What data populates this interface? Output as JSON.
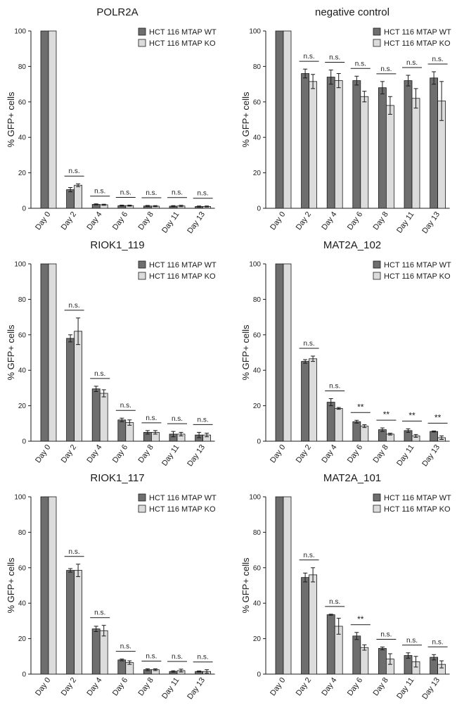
{
  "figure": {
    "ylabel": "% GFP+ cells",
    "yticks": [
      0,
      20,
      40,
      60,
      80,
      100
    ],
    "legend": {
      "wt": "HCT 116 MTAP WT",
      "ko": "HCT 116 MTAP KO"
    },
    "colors": {
      "wt": "#6e6e6e",
      "ko": "#dcdcdc",
      "stroke": "#1a1a1a"
    }
  },
  "chart_data": [
    {
      "type": "bar",
      "title": "POLR2A",
      "xlabel": "",
      "ylabel": "% GFP+ cells",
      "ylim": [
        0,
        100
      ],
      "legend_position": "top-right",
      "categories": [
        "Day 0",
        "Day 2",
        "Day 4",
        "Day 6",
        "Day 8",
        "Day 11",
        "Day 13"
      ],
      "series": [
        {
          "name": "HCT 116 MTAP WT",
          "values": [
            100,
            10.5,
            2.2,
            1.5,
            1.3,
            1.2,
            1.0
          ],
          "errors": [
            0,
            1.2,
            0.3,
            0.3,
            0.3,
            0.3,
            0.3
          ]
        },
        {
          "name": "HCT 116 MTAP KO",
          "values": [
            100,
            13.0,
            2.0,
            1.5,
            1.2,
            1.3,
            1.0
          ],
          "errors": [
            0,
            0.8,
            0.3,
            0.3,
            0.3,
            0.4,
            0.3
          ]
        }
      ],
      "significance": [
        "",
        "n.s.",
        "n.s.",
        "n.s.",
        "n.s.",
        "n.s.",
        "n.s."
      ]
    },
    {
      "type": "bar",
      "title": "negative control",
      "xlabel": "",
      "ylabel": "% GFP+ cells",
      "ylim": [
        0,
        100
      ],
      "legend_position": "top-right",
      "categories": [
        "Day 0",
        "Day 2",
        "Day 4",
        "Day 6",
        "Day 8",
        "Day 11",
        "Day 13"
      ],
      "series": [
        {
          "name": "HCT 116 MTAP WT",
          "values": [
            100,
            76,
            74,
            72,
            68,
            72,
            73.5
          ],
          "errors": [
            0,
            2.5,
            4.0,
            2.5,
            3.5,
            3.0,
            3.5
          ]
        },
        {
          "name": "HCT 116 MTAP KO",
          "values": [
            100,
            71.5,
            72,
            63,
            58,
            62,
            60.5
          ],
          "errors": [
            0,
            4.0,
            4.0,
            3.0,
            5.0,
            5.5,
            11
          ]
        }
      ],
      "significance": [
        "",
        "n.s.",
        "n.s.",
        "n.s.",
        "n.s.",
        "n.s.",
        "n.s."
      ]
    },
    {
      "type": "bar",
      "title": "RIOK1_119",
      "xlabel": "",
      "ylabel": "% GFP+ cells",
      "ylim": [
        0,
        100
      ],
      "legend_position": "top-right",
      "categories": [
        "Day 0",
        "Day 2",
        "Day 4",
        "Day 6",
        "Day 8",
        "Day 11",
        "Day 13"
      ],
      "series": [
        {
          "name": "HCT 116 MTAP WT",
          "values": [
            100,
            58,
            29.5,
            12,
            5,
            4,
            3.5
          ],
          "errors": [
            0,
            2.0,
            1.5,
            1.0,
            1.0,
            1.5,
            1.5
          ]
        },
        {
          "name": "HCT 116 MTAP KO",
          "values": [
            100,
            62,
            27,
            10.5,
            5,
            4,
            3.5
          ],
          "errors": [
            0,
            7.5,
            2.0,
            1.5,
            1.0,
            1.0,
            1.0
          ]
        }
      ],
      "significance": [
        "",
        "n.s.",
        "n.s.",
        "n.s.",
        "n.s.",
        "n.s.",
        "n.s."
      ]
    },
    {
      "type": "bar",
      "title": "MAT2A_102",
      "xlabel": "",
      "ylabel": "% GFP+ cells",
      "ylim": [
        0,
        100
      ],
      "legend_position": "top-right",
      "categories": [
        "Day 0",
        "Day 2",
        "Day 4",
        "Day 6",
        "Day 8",
        "Day 11",
        "Day 13"
      ],
      "series": [
        {
          "name": "HCT 116 MTAP WT",
          "values": [
            100,
            45,
            22,
            11,
            6.5,
            6,
            5.5
          ],
          "errors": [
            0,
            1.0,
            2.0,
            0.8,
            1.0,
            1.0,
            0.3
          ]
        },
        {
          "name": "HCT 116 MTAP KO",
          "values": [
            100,
            46.5,
            18.5,
            8.5,
            4,
            3,
            2
          ],
          "errors": [
            0,
            1.5,
            0.5,
            0.8,
            0.5,
            0.8,
            1.0
          ]
        }
      ],
      "significance": [
        "",
        "n.s.",
        "n.s.",
        "**",
        "**",
        "**",
        "**"
      ]
    },
    {
      "type": "bar",
      "title": "RIOK1_117",
      "xlabel": "",
      "ylabel": "% GFP+ cells",
      "ylim": [
        0,
        100
      ],
      "legend_position": "top-right",
      "categories": [
        "Day 0",
        "Day 2",
        "Day 4",
        "Day 6",
        "Day 8",
        "Day 11",
        "Day 13"
      ],
      "series": [
        {
          "name": "HCT 116 MTAP WT",
          "values": [
            100,
            58.5,
            25.5,
            8,
            2.5,
            1.5,
            1.5
          ],
          "errors": [
            0,
            1.0,
            1.5,
            0.5,
            0.5,
            0.4,
            0.3
          ]
        },
        {
          "name": "HCT 116 MTAP KO",
          "values": [
            100,
            58.5,
            24.5,
            6.5,
            2.5,
            2,
            1.5
          ],
          "errors": [
            0,
            3.5,
            3.0,
            1.0,
            0.5,
            0.8,
            1.0
          ]
        }
      ],
      "significance": [
        "",
        "n.s.",
        "n.s.",
        "n.s.",
        "n.s.",
        "n.s.",
        "n.s."
      ]
    },
    {
      "type": "bar",
      "title": "MAT2A_101",
      "xlabel": "",
      "ylabel": "% GFP+ cells",
      "ylim": [
        0,
        100
      ],
      "legend_position": "top-right",
      "categories": [
        "Day 0",
        "Day 2",
        "Day 4",
        "Day 6",
        "Day 8",
        "Day 11",
        "Day 13"
      ],
      "series": [
        {
          "name": "HCT 116 MTAP WT",
          "values": [
            100,
            54.5,
            33.5,
            21.5,
            14.5,
            10.5,
            9.5
          ],
          "errors": [
            0,
            2.5,
            0.3,
            2.0,
            0.8,
            1.5,
            1.5
          ]
        },
        {
          "name": "HCT 116 MTAP KO",
          "values": [
            100,
            56,
            27,
            15,
            8.5,
            7,
            5.5
          ],
          "errors": [
            0,
            4.0,
            4.5,
            1.5,
            3.0,
            3.0,
            2.0
          ]
        }
      ],
      "significance": [
        "",
        "n.s.",
        "n.s.",
        "**",
        "n.s.",
        "n.s.",
        "n.s."
      ]
    }
  ]
}
